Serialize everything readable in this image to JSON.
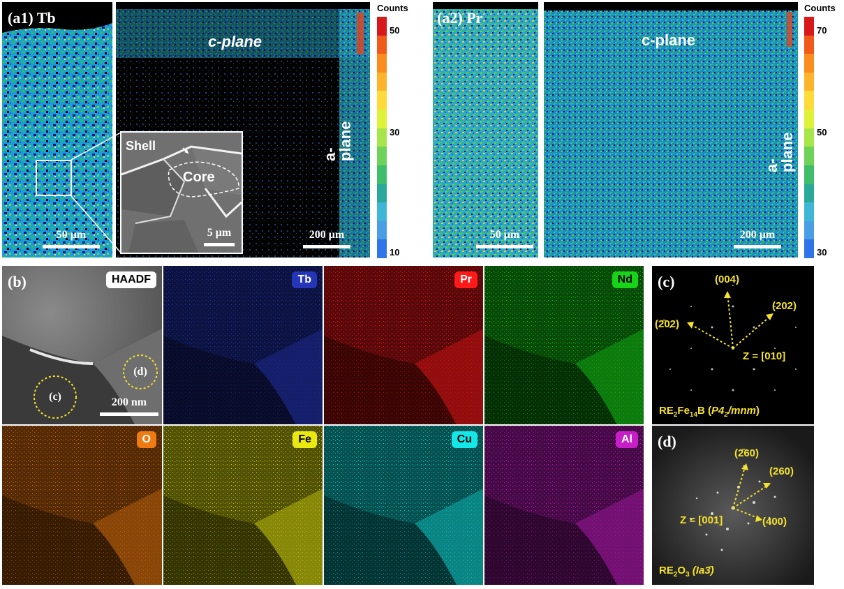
{
  "a1": {
    "label": "(a1) Tb",
    "zoom_scale": "50 μm",
    "overview_scale": "200 μm",
    "c_plane": "c-plane",
    "a_plane": "a-plane",
    "inset": {
      "shell": "Shell",
      "core": "Core",
      "scale": "5 μm"
    },
    "colorbar": {
      "title": "Counts",
      "ticks": [
        "50",
        "30",
        "10"
      ],
      "colors": [
        "#d7191c",
        "#f05a1a",
        "#fb8c1e",
        "#fdb42c",
        "#fedb3a",
        "#dff23a",
        "#a7e64a",
        "#6fd25a",
        "#3fbd6a",
        "#2aa89a",
        "#3fb6d6",
        "#4a9ee6",
        "#2f74e8"
      ]
    }
  },
  "a2": {
    "label": "(a2) Pr",
    "zoom_scale": "50 μm",
    "overview_scale": "200 μm",
    "c_plane": "c-plane",
    "a_plane": "a-plane",
    "colorbar": {
      "title": "Counts",
      "ticks": [
        "70",
        "50",
        "30"
      ],
      "colors": [
        "#d7191c",
        "#f05a1a",
        "#fb8c1e",
        "#fdb42c",
        "#fedb3a",
        "#dff23a",
        "#a7e64a",
        "#6fd25a",
        "#3fbd6a",
        "#2aa89a",
        "#3fb6d6",
        "#4a9ee6",
        "#2f74e8"
      ]
    }
  },
  "b": {
    "label": "(b)",
    "haadf": "HAADF",
    "marker_c": "(c)",
    "marker_d": "(d)",
    "scale": "200 nm",
    "maps": [
      {
        "name": "Tb",
        "color": "#2535b8"
      },
      {
        "name": "Pr",
        "color": "#ff1a1a"
      },
      {
        "name": "Nd",
        "color": "#18d418"
      },
      {
        "name": "O",
        "color": "#f07a12"
      },
      {
        "name": "Fe",
        "color": "#eaea12"
      },
      {
        "name": "Cu",
        "color": "#15e6e6"
      },
      {
        "name": "Al",
        "color": "#c81ec8"
      }
    ]
  },
  "c": {
    "label": "(c)",
    "spots": [
      "(004)",
      "(202)",
      "(2̄02)"
    ],
    "zone": "Z = [010]",
    "phase_prefix": "RE",
    "phase_sub1": "2",
    "phase_mid": "Fe",
    "phase_sub2": "14",
    "phase_b": "B (",
    "phase_group": "P4",
    "phase_group_sub": "2",
    "phase_group_end": "/mnm",
    "phase_close": ")"
  },
  "d": {
    "label": "(d)",
    "spots": [
      "(2̄60)",
      "(260)",
      "(400)"
    ],
    "zone": "Z = [001]",
    "phase_prefix": "RE",
    "phase_sub1": "2",
    "phase_mid": "O",
    "phase_sub2": "3",
    "phase_group": "(Ia3̄)"
  }
}
